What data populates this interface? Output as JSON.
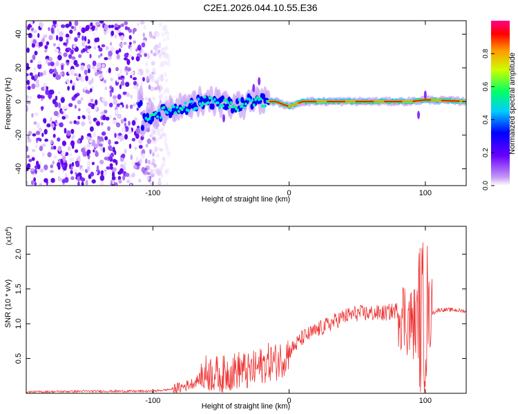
{
  "title": "C2E1.2026.044.10.55.E36",
  "chart_data": [
    {
      "type": "heatmap",
      "xlabel": "Height of straight line (km)",
      "ylabel": "Frequency (Hz)",
      "xlim": [
        -193,
        130
      ],
      "ylim": [
        -50,
        48
      ],
      "xticks": [
        -100,
        0,
        100
      ],
      "yticks": [
        -40,
        -20,
        0,
        20,
        40
      ],
      "colorbar": {
        "label": "Normalized spectral amplitude",
        "range": [
          0,
          1
        ],
        "ticks": [
          "0.0",
          "0.2",
          "0.4",
          "0.6",
          "0.8"
        ],
        "tick_values": [
          0,
          0.2,
          0.4,
          0.6,
          0.8
        ]
      },
      "ridge": {
        "x": [
          -108,
          -100,
          -90,
          -80,
          -70,
          -60,
          -50,
          -40,
          -30,
          -20,
          -10,
          0,
          10,
          50,
          90,
          100,
          130
        ],
        "y": [
          -13,
          -8,
          -6,
          -4,
          -2,
          1,
          -1,
          -3,
          0,
          0,
          0,
          -3,
          0,
          0,
          0,
          1,
          0
        ]
      }
    },
    {
      "type": "line",
      "xlabel": "Height of straight line (km)",
      "ylabel": "SNR (10 * v/v)",
      "multiplier": "(x10",
      "multiplier_exp": "4",
      "multiplier_close": ")",
      "xlim": [
        -193,
        130
      ],
      "ylim": [
        0,
        2.4
      ],
      "xticks": [
        -100,
        0,
        100
      ],
      "yticks": [
        0.5,
        1.0,
        1.5,
        2.0
      ],
      "ytick_labels": [
        "0.5",
        "1.0",
        "1.5",
        "2.0"
      ],
      "color": "#ee3333",
      "x": [
        -193,
        -150,
        -100,
        -90,
        -80,
        -70,
        -65,
        -60,
        -55,
        -50,
        -45,
        -40,
        -35,
        -30,
        -25,
        -20,
        -15,
        -10,
        -5,
        0,
        5,
        10,
        20,
        30,
        40,
        50,
        60,
        70,
        80,
        85,
        90,
        95,
        100,
        105,
        110,
        120,
        130
      ],
      "y": [
        0.02,
        0.03,
        0.03,
        0.05,
        0.08,
        0.15,
        0.22,
        0.3,
        0.28,
        0.25,
        0.3,
        0.32,
        0.35,
        0.3,
        0.35,
        0.4,
        0.45,
        0.45,
        0.5,
        0.6,
        0.7,
        0.8,
        0.9,
        1.0,
        1.1,
        1.15,
        1.15,
        1.15,
        1.2,
        1.1,
        1.0,
        1.05,
        1.1,
        1.15,
        1.2,
        1.2,
        1.18
      ]
    }
  ]
}
